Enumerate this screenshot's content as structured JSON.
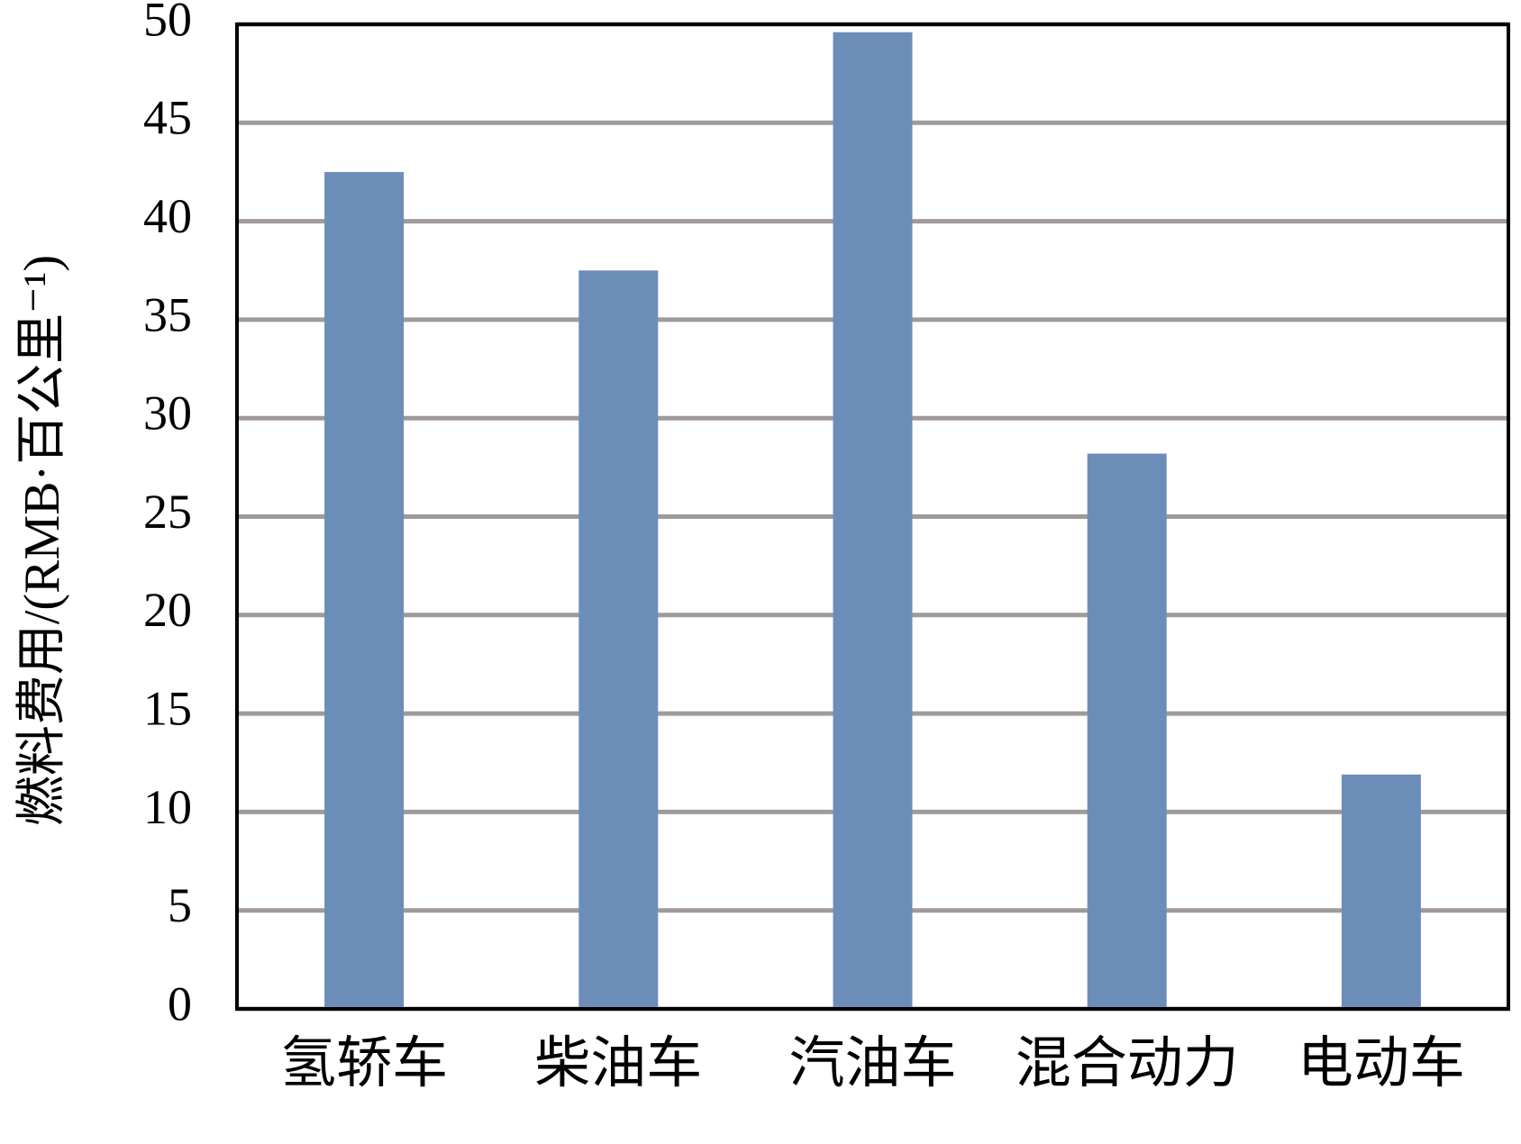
{
  "chart_data": {
    "type": "bar",
    "y_label": "燃料费用/(RMB·百公里⁻¹)",
    "categories": [
      "氢轿车",
      "柴油车",
      "汽油车",
      "混合动力",
      "电动车"
    ],
    "values": [
      42.5,
      37.5,
      49.6,
      28.2,
      11.9
    ],
    "color": "#6d8db9",
    "ylim": [
      0,
      50
    ],
    "yticks": [
      0,
      5,
      10,
      15,
      20,
      25,
      30,
      35,
      40,
      45,
      50
    ],
    "grid": true
  }
}
